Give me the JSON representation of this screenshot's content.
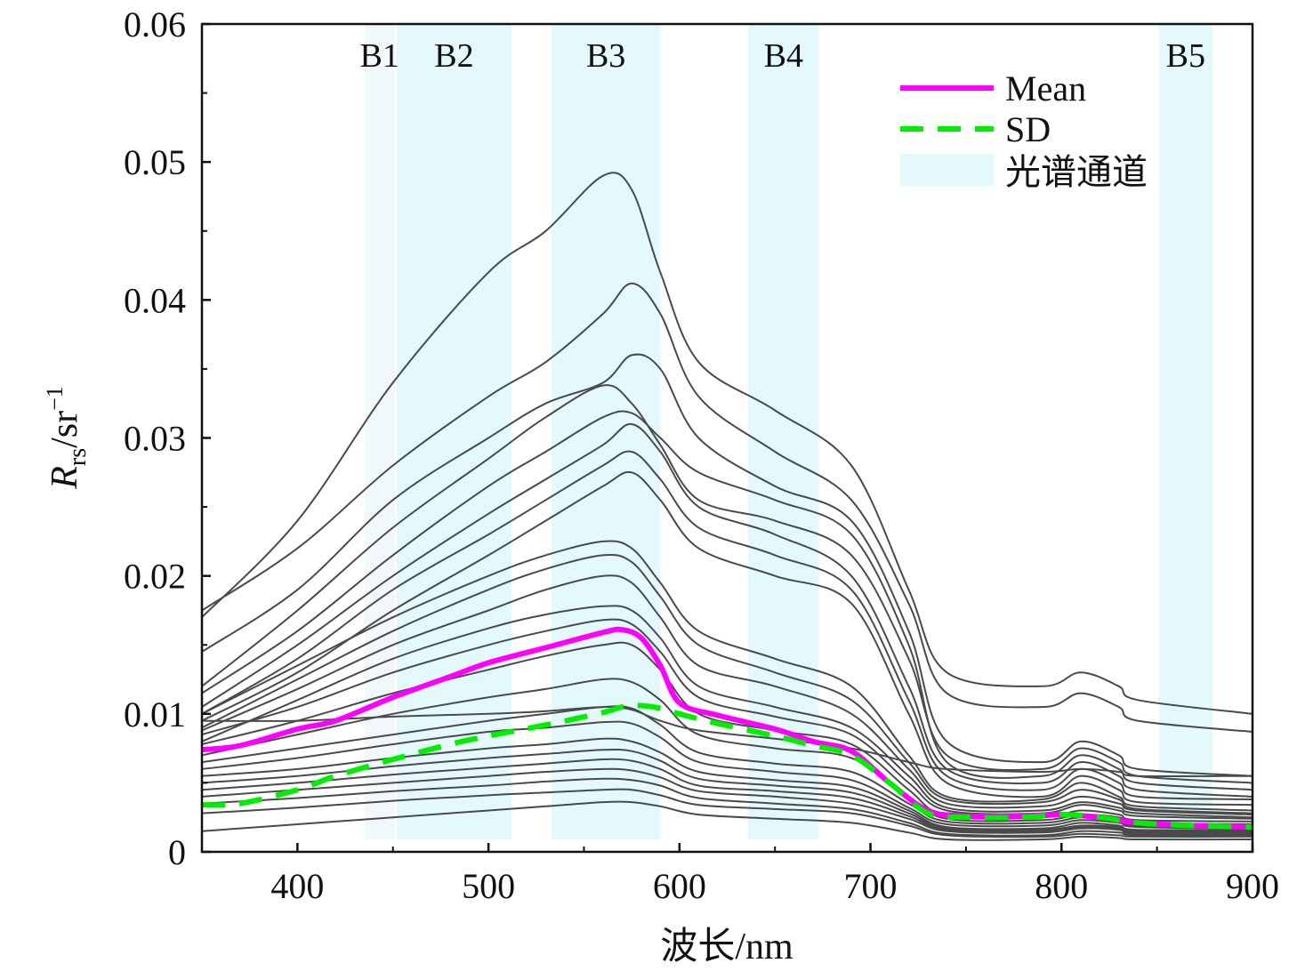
{
  "chart_data": {
    "type": "line",
    "xlabel": "波长/nm",
    "ylabel_main": "R",
    "ylabel_sub": "rs",
    "ylabel_unit": "/sr",
    "ylabel_sup": "−1",
    "xlim": [
      350,
      900
    ],
    "ylim": [
      0,
      0.06
    ],
    "xticks": [
      400,
      500,
      600,
      700,
      800,
      900
    ],
    "xtick_labels": [
      "400",
      "500",
      "600",
      "700",
      "800",
      "900"
    ],
    "yticks": [
      0,
      0.01,
      0.02,
      0.03,
      0.04,
      0.05,
      0.06
    ],
    "ytick_labels": [
      "0",
      "0.01",
      "0.02",
      "0.03",
      "0.04",
      "0.05",
      "0.06"
    ],
    "grid": false,
    "legend_position": "top-right",
    "legend": [
      {
        "label": "Mean",
        "style": "solid",
        "color": "#ff00ff"
      },
      {
        "label": "SD",
        "style": "dashed",
        "color": "#00ee00"
      },
      {
        "label": "光谱通道",
        "style": "patch",
        "color": "#e4f9fb"
      }
    ],
    "bands": [
      {
        "label": "B1",
        "range": [
          435,
          451
        ],
        "color": "#f1f8fa"
      },
      {
        "label": "B2",
        "range": [
          452,
          512
        ],
        "color": "#e4f9fb"
      },
      {
        "label": "B3",
        "range": [
          533,
          590
        ],
        "color": "#e4f9fb"
      },
      {
        "label": "B4",
        "range": [
          636,
          673
        ],
        "color": "#e4f9fb"
      },
      {
        "label": "B5",
        "range": [
          851,
          879
        ],
        "color": "#e4f9fb"
      }
    ],
    "sample_color": "#4a4a4a",
    "mean": {
      "name": "Mean",
      "color": "#ff00ff",
      "x": [
        350,
        370,
        400,
        420,
        450,
        480,
        500,
        530,
        560,
        570,
        580,
        590,
        600,
        620,
        650,
        670,
        690,
        710,
        730,
        750,
        780,
        800,
        820,
        840,
        870,
        900
      ],
      "y": [
        0.0074,
        0.0077,
        0.0089,
        0.0095,
        0.0112,
        0.0127,
        0.0137,
        0.0148,
        0.0159,
        0.0161,
        0.0155,
        0.0135,
        0.0108,
        0.0099,
        0.0089,
        0.008,
        0.0073,
        0.005,
        0.003,
        0.0026,
        0.0026,
        0.0027,
        0.0025,
        0.0021,
        0.0019,
        0.0018
      ]
    },
    "sd": {
      "name": "SD",
      "color": "#00ee00",
      "x": [
        350,
        370,
        400,
        420,
        450,
        480,
        500,
        530,
        560,
        570,
        580,
        590,
        600,
        620,
        650,
        670,
        690,
        710,
        730,
        750,
        780,
        800,
        820,
        840,
        870,
        900
      ],
      "y": [
        0.0034,
        0.0035,
        0.0045,
        0.0055,
        0.0067,
        0.0078,
        0.0084,
        0.0092,
        0.0101,
        0.0105,
        0.0106,
        0.0104,
        0.01,
        0.0093,
        0.0084,
        0.0077,
        0.007,
        0.005,
        0.0028,
        0.0025,
        0.0025,
        0.0027,
        0.0025,
        0.0021,
        0.0019,
        0.0018
      ]
    },
    "samples_x": [
      350,
      400,
      450,
      500,
      530,
      560,
      575,
      590,
      610,
      650,
      690,
      720,
      740,
      790,
      810,
      830,
      840,
      900
    ],
    "samples": [
      [
        0.017,
        0.024,
        0.034,
        0.042,
        0.045,
        0.049,
        0.048,
        0.042,
        0.0355,
        0.032,
        0.028,
        0.019,
        0.013,
        0.012,
        0.013,
        0.012,
        0.011,
        0.01
      ],
      [
        0.0175,
        0.022,
        0.028,
        0.033,
        0.0355,
        0.039,
        0.0412,
        0.039,
        0.033,
        0.029,
        0.0255,
        0.018,
        0.0115,
        0.0105,
        0.0115,
        0.0105,
        0.0095,
        0.0087
      ],
      [
        0.0145,
        0.019,
        0.0255,
        0.03,
        0.0325,
        0.034,
        0.036,
        0.035,
        0.03,
        0.0265,
        0.024,
        0.016,
        0.008,
        0.0065,
        0.008,
        0.007,
        0.006,
        0.0055
      ],
      [
        0.012,
        0.0175,
        0.0235,
        0.0285,
        0.0315,
        0.0338,
        0.0325,
        0.0295,
        0.0255,
        0.024,
        0.0215,
        0.014,
        0.007,
        0.006,
        0.0075,
        0.0065,
        0.0055,
        0.005
      ],
      [
        0.0115,
        0.016,
        0.0215,
        0.0265,
        0.029,
        0.0315,
        0.0318,
        0.03,
        0.0275,
        0.0255,
        0.023,
        0.015,
        0.0065,
        0.0055,
        0.007,
        0.006,
        0.005,
        0.0045
      ],
      [
        0.0105,
        0.015,
        0.02,
        0.0245,
        0.027,
        0.0295,
        0.031,
        0.029,
        0.025,
        0.023,
        0.02,
        0.012,
        0.006,
        0.005,
        0.0065,
        0.0055,
        0.0045,
        0.004
      ],
      [
        0.01,
        0.014,
        0.019,
        0.023,
        0.0255,
        0.028,
        0.029,
        0.027,
        0.0235,
        0.0215,
        0.019,
        0.011,
        0.0055,
        0.0045,
        0.006,
        0.005,
        0.004,
        0.0038
      ],
      [
        0.0095,
        0.013,
        0.0175,
        0.0215,
        0.024,
        0.0265,
        0.0275,
        0.0255,
        0.022,
        0.02,
        0.018,
        0.01,
        0.005,
        0.004,
        0.0055,
        0.0045,
        0.0036,
        0.0034
      ],
      [
        0.01,
        0.0135,
        0.017,
        0.02,
        0.0215,
        0.0225,
        0.022,
        0.0195,
        0.016,
        0.014,
        0.012,
        0.007,
        0.004,
        0.0038,
        0.005,
        0.004,
        0.0033,
        0.003
      ],
      [
        0.009,
        0.0125,
        0.016,
        0.019,
        0.0205,
        0.0215,
        0.021,
        0.0185,
        0.015,
        0.013,
        0.011,
        0.0065,
        0.0038,
        0.0036,
        0.0045,
        0.0038,
        0.0031,
        0.0028
      ],
      [
        0.0088,
        0.0118,
        0.015,
        0.0175,
        0.019,
        0.02,
        0.0195,
        0.017,
        0.0135,
        0.012,
        0.01,
        0.006,
        0.0035,
        0.0033,
        0.004,
        0.0035,
        0.003,
        0.0027
      ],
      [
        0.008,
        0.011,
        0.014,
        0.0162,
        0.0172,
        0.0178,
        0.0175,
        0.0155,
        0.012,
        0.0105,
        0.009,
        0.0055,
        0.0032,
        0.003,
        0.0036,
        0.0032,
        0.0028,
        0.0025
      ],
      [
        0.0085,
        0.0105,
        0.013,
        0.015,
        0.016,
        0.0168,
        0.0165,
        0.0145,
        0.0112,
        0.0098,
        0.0085,
        0.005,
        0.003,
        0.0028,
        0.0034,
        0.003,
        0.0026,
        0.0024
      ],
      [
        0.0078,
        0.0095,
        0.0115,
        0.0132,
        0.0142,
        0.015,
        0.015,
        0.0132,
        0.01,
        0.0088,
        0.0078,
        0.0045,
        0.0026,
        0.0025,
        0.003,
        0.0027,
        0.0023,
        0.0022
      ],
      [
        0.007,
        0.0085,
        0.01,
        0.0112,
        0.0118,
        0.0125,
        0.0123,
        0.011,
        0.0085,
        0.0075,
        0.0068,
        0.004,
        0.0024,
        0.0023,
        0.0027,
        0.0025,
        0.0021,
        0.002
      ],
      [
        0.0095,
        0.0095,
        0.0098,
        0.01,
        0.0102,
        0.0105,
        0.0103,
        0.0095,
        0.0088,
        0.0082,
        0.0075,
        0.0065,
        0.006,
        0.0058,
        0.006,
        0.0058,
        0.0055,
        0.0055
      ],
      [
        0.0065,
        0.0075,
        0.0085,
        0.0095,
        0.01,
        0.0105,
        0.0104,
        0.0092,
        0.0072,
        0.0064,
        0.0058,
        0.0035,
        0.0022,
        0.0021,
        0.0025,
        0.0023,
        0.0019,
        0.0018
      ],
      [
        0.006,
        0.0068,
        0.0078,
        0.0087,
        0.009,
        0.0094,
        0.0093,
        0.0083,
        0.0065,
        0.0058,
        0.0052,
        0.0032,
        0.002,
        0.0019,
        0.0023,
        0.0021,
        0.0018,
        0.0017
      ],
      [
        0.0055,
        0.006,
        0.0068,
        0.0075,
        0.0078,
        0.0082,
        0.008,
        0.0072,
        0.0058,
        0.0052,
        0.0047,
        0.003,
        0.0018,
        0.0017,
        0.0021,
        0.0019,
        0.0016,
        0.0016
      ],
      [
        0.005,
        0.0055,
        0.0062,
        0.0068,
        0.0071,
        0.0074,
        0.0073,
        0.0066,
        0.0053,
        0.0048,
        0.0043,
        0.0028,
        0.0017,
        0.0016,
        0.0019,
        0.0018,
        0.0015,
        0.0015
      ],
      [
        0.0045,
        0.005,
        0.0056,
        0.0061,
        0.0064,
        0.0067,
        0.0066,
        0.006,
        0.0048,
        0.0044,
        0.0039,
        0.0026,
        0.0016,
        0.0015,
        0.0018,
        0.0017,
        0.0014,
        0.0014
      ],
      [
        0.004,
        0.0045,
        0.005,
        0.0055,
        0.0058,
        0.006,
        0.0059,
        0.0054,
        0.0044,
        0.004,
        0.0035,
        0.0024,
        0.0015,
        0.0014,
        0.0017,
        0.0016,
        0.0013,
        0.0013
      ],
      [
        0.0035,
        0.0039,
        0.0044,
        0.0048,
        0.0051,
        0.0053,
        0.0052,
        0.0048,
        0.0039,
        0.0035,
        0.0031,
        0.0021,
        0.0013,
        0.0012,
        0.0015,
        0.0014,
        0.0012,
        0.0012
      ],
      [
        0.0028,
        0.0032,
        0.0037,
        0.0041,
        0.0043,
        0.0045,
        0.0045,
        0.0041,
        0.0034,
        0.0031,
        0.0028,
        0.0019,
        0.0012,
        0.0011,
        0.0013,
        0.0012,
        0.0011,
        0.0011
      ],
      [
        0.0015,
        0.002,
        0.0025,
        0.003,
        0.0033,
        0.0036,
        0.0036,
        0.0033,
        0.0027,
        0.0024,
        0.0021,
        0.0014,
        0.0009,
        0.0009,
        0.0011,
        0.001,
        0.0009,
        0.0009
      ]
    ]
  }
}
